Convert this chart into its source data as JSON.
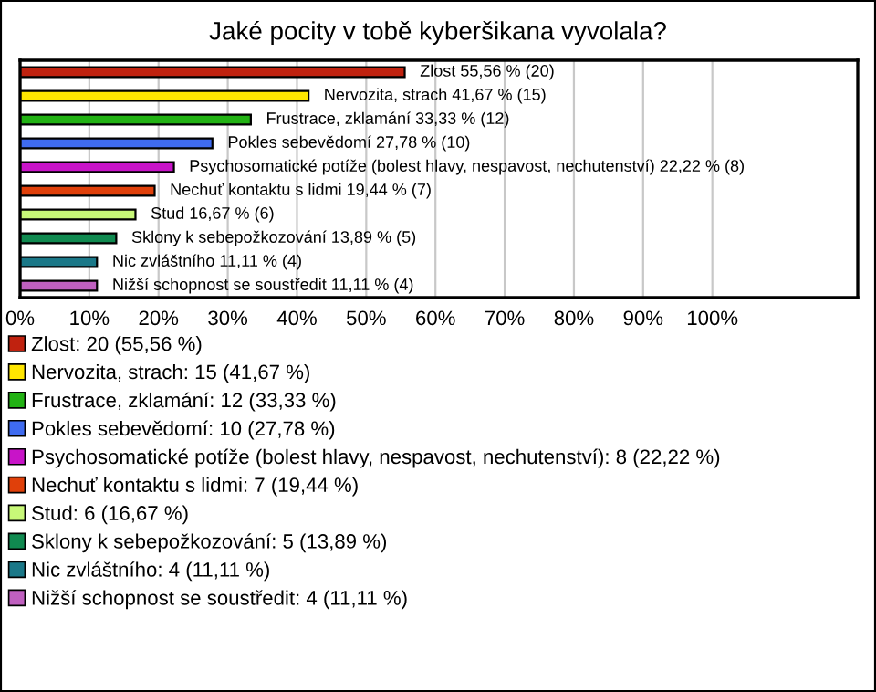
{
  "chart_data": {
    "type": "bar",
    "orientation": "horizontal",
    "title": "Jaké pocity v tobě kyberšikana vyvolala?",
    "categories": [
      null,
      null,
      null,
      null,
      null,
      null,
      null,
      null,
      null,
      null
    ],
    "series": [
      {
        "name": "Zlost: 20 (55,56 %)",
        "color": "#c0220f",
        "values": [
          55.56,
          null,
          null,
          null,
          null,
          null,
          null,
          null,
          null,
          null
        ],
        "value_labels": [
          "Zlost 55,56 % (20)",
          null,
          null,
          null,
          null,
          null,
          null,
          null,
          null,
          null
        ]
      },
      {
        "name": "Nervozita, strach: 15 (41,67 %)",
        "color": "#ffe600",
        "values": [
          null,
          41.67,
          null,
          null,
          null,
          null,
          null,
          null,
          null,
          null
        ],
        "value_labels": [
          null,
          "Nervozita, strach 41,67 % (15)",
          null,
          null,
          null,
          null,
          null,
          null,
          null,
          null
        ]
      },
      {
        "name": "Frustrace, zklamání: 12 (33,33 %)",
        "color": "#22b214",
        "values": [
          null,
          null,
          33.33,
          null,
          null,
          null,
          null,
          null,
          null,
          null
        ],
        "value_labels": [
          null,
          null,
          "Frustrace, zklamání 33,33 % (12)",
          null,
          null,
          null,
          null,
          null,
          null,
          null
        ]
      },
      {
        "name": "Pokles sebevědomí: 10 (27,78 %)",
        "color": "#3f6bf0",
        "values": [
          null,
          null,
          null,
          27.78,
          null,
          null,
          null,
          null,
          null,
          null
        ],
        "value_labels": [
          null,
          null,
          null,
          "Pokles sebevědomí 27,78 % (10)",
          null,
          null,
          null,
          null,
          null,
          null
        ]
      },
      {
        "name": "Psychosomatické potíže (bolest hlavy, nespavost, nechutenství): 8 (22,22 %)",
        "color": "#c814c8",
        "values": [
          null,
          null,
          null,
          null,
          22.22,
          null,
          null,
          null,
          null,
          null
        ],
        "value_labels": [
          null,
          null,
          null,
          null,
          "Psychosomatické potíže (bolest hlavy, nespavost, nechutenství) 22,22 % (8)",
          null,
          null,
          null,
          null,
          null
        ]
      },
      {
        "name": "Nechuť kontaktu s lidmi: 7 (19,44 %)",
        "color": "#e0400a",
        "values": [
          null,
          null,
          null,
          null,
          null,
          19.44,
          null,
          null,
          null,
          null
        ],
        "value_labels": [
          null,
          null,
          null,
          null,
          null,
          "Nechuť kontaktu s lidmi 19,44 % (7)",
          null,
          null,
          null,
          null
        ]
      },
      {
        "name": "Stud: 6 (16,67 %)",
        "color": "#c8f878",
        "values": [
          null,
          null,
          null,
          null,
          null,
          null,
          16.67,
          null,
          null,
          null
        ],
        "value_labels": [
          null,
          null,
          null,
          null,
          null,
          null,
          "Stud 16,67 % (6)",
          null,
          null,
          null
        ]
      },
      {
        "name": "Sklony k sebepožkozování: 5 (13,89 %)",
        "color": "#108a50",
        "values": [
          null,
          null,
          null,
          null,
          null,
          null,
          null,
          13.89,
          null,
          null
        ],
        "value_labels": [
          null,
          null,
          null,
          null,
          null,
          null,
          null,
          "Sklony k sebepožkozování 13,89 % (5)",
          null,
          null
        ]
      },
      {
        "name": "Nic zvláštního: 4 (11,11 %)",
        "color": "#1a7888",
        "values": [
          null,
          null,
          null,
          null,
          null,
          null,
          null,
          null,
          11.11,
          null
        ],
        "value_labels": [
          null,
          null,
          null,
          null,
          null,
          null,
          null,
          null,
          "Nic zvláštního 11,11 % (4)",
          null
        ]
      },
      {
        "name": "Nižší schopnost se soustředit: 4 (11,11 %)",
        "color": "#c060c0",
        "values": [
          null,
          null,
          null,
          null,
          null,
          null,
          null,
          null,
          null,
          11.11
        ],
        "value_labels": [
          null,
          null,
          null,
          null,
          null,
          null,
          null,
          null,
          null,
          "Nižší schopnost se soustředit 11,11 % (4)"
        ]
      }
    ],
    "xlim": [
      0,
      121
    ],
    "xticks": [
      {
        "value": 0,
        "label": "0%"
      },
      {
        "value": 10,
        "label": "10%"
      },
      {
        "value": 20,
        "label": "20%"
      },
      {
        "value": 30,
        "label": "30%"
      },
      {
        "value": 40,
        "label": "40%"
      },
      {
        "value": 50,
        "label": "50%"
      },
      {
        "value": 60,
        "label": "60%"
      },
      {
        "value": 70,
        "label": "70%"
      },
      {
        "value": 80,
        "label": "80%"
      },
      {
        "value": 90,
        "label": "90%"
      },
      {
        "value": 100,
        "label": "100%"
      }
    ],
    "grid": "x",
    "legend": "bottom",
    "tick_labels": "x"
  }
}
